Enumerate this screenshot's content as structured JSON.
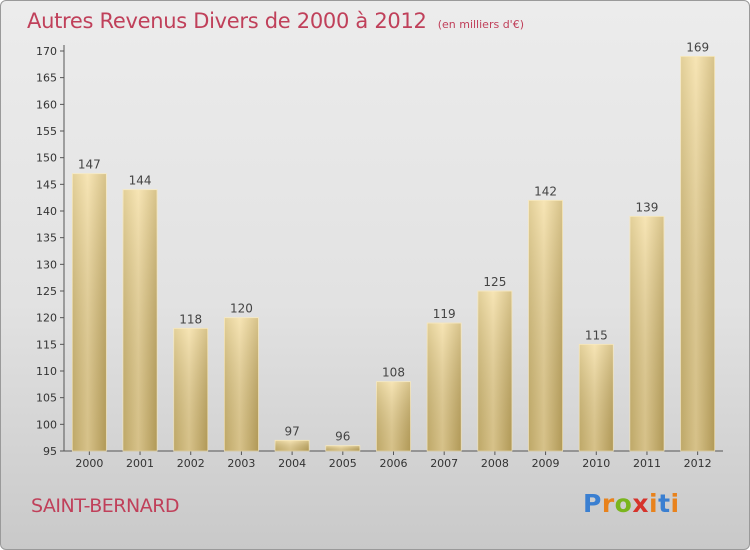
{
  "header": {
    "title": "Autres Revenus Divers de 2000 à 2012",
    "subtitle": "(en milliers d'€)"
  },
  "footer": {
    "commune": "SAINT-BERNARD",
    "logo_letters": [
      "P",
      "r",
      "o",
      "x",
      "i",
      "t",
      "i"
    ],
    "logo_colors": [
      "#3a7fd1",
      "#e8821c",
      "#7ab51d",
      "#d6332c",
      "#e8821c",
      "#3a7fd1",
      "#e8821c"
    ]
  },
  "colors": {
    "title": "#c0405a",
    "bar_light": "#f4dc9c",
    "bar_dark": "#c9ae63"
  },
  "chart_data": {
    "type": "bar",
    "categories": [
      "2000",
      "2001",
      "2002",
      "2003",
      "2004",
      "2005",
      "2006",
      "2007",
      "2008",
      "2009",
      "2010",
      "2011",
      "2012"
    ],
    "values": [
      147,
      144,
      118,
      120,
      97,
      96,
      108,
      119,
      125,
      142,
      115,
      139,
      169
    ],
    "ylim": [
      95,
      170
    ],
    "yticks": [
      "95",
      "100",
      "105",
      "110",
      "115",
      "120",
      "125",
      "130",
      "135",
      "140",
      "145",
      "150",
      "155",
      "160",
      "165",
      "170"
    ],
    "grid": false,
    "legend": "none"
  }
}
